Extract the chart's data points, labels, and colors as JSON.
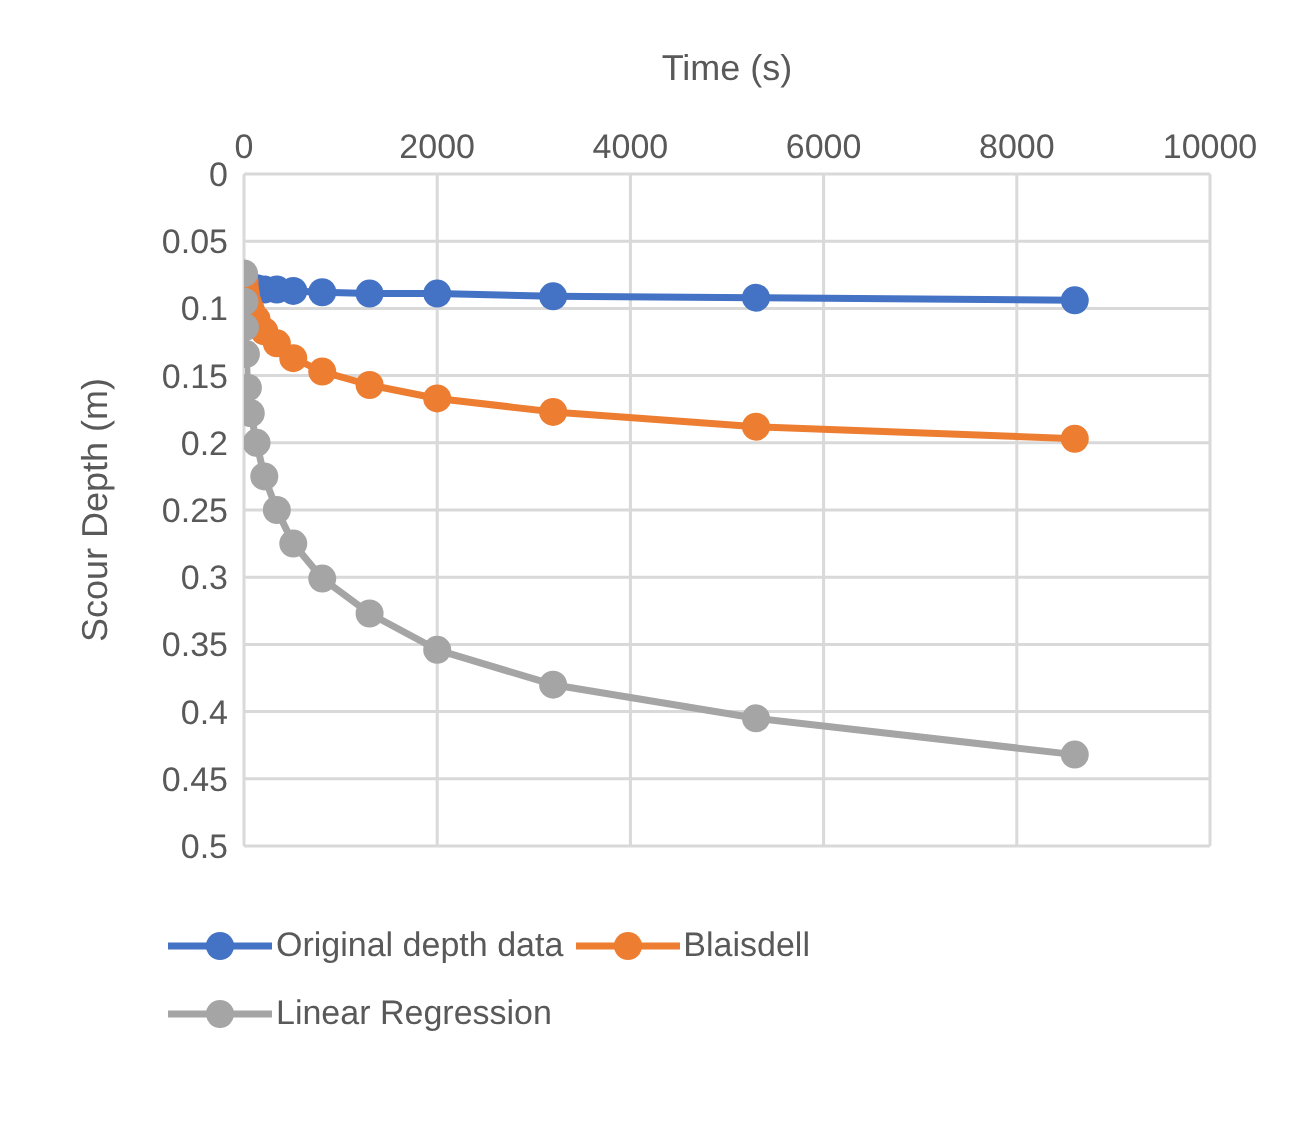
{
  "chart_data": {
    "type": "line",
    "xlabel": "Time (s)",
    "ylabel": "Scour Depth (m)",
    "x": [
      0,
      5,
      10,
      20,
      40,
      70,
      130,
      210,
      340,
      510,
      810,
      1300,
      2000,
      3200,
      5300,
      8600
    ],
    "series": [
      {
        "name": "Original depth data",
        "color": "#4472c4",
        "values": [
          null,
          null,
          null,
          null,
          0.083,
          0.084,
          0.085,
          0.086,
          0.086,
          0.087,
          0.088,
          0.089,
          0.089,
          0.091,
          0.092,
          0.094
        ]
      },
      {
        "name": "Blaisdell",
        "color": "#ed7d31",
        "values": [
          0.075,
          0.08,
          0.085,
          0.09,
          0.096,
          0.101,
          0.108,
          0.117,
          0.126,
          0.137,
          0.147,
          0.157,
          0.167,
          0.177,
          0.188,
          0.197
        ]
      },
      {
        "name": "Linear Regression",
        "color": "#a5a5a5",
        "values": [
          0.074,
          0.095,
          0.114,
          0.134,
          0.159,
          0.178,
          0.2,
          0.225,
          0.25,
          0.275,
          0.301,
          0.327,
          0.354,
          0.38,
          0.405,
          0.432
        ]
      }
    ],
    "xlim": [
      0,
      10000
    ],
    "xticks": [
      0,
      2000,
      4000,
      6000,
      8000,
      10000
    ],
    "ylim": [
      0.5,
      0
    ],
    "yticks": [
      0,
      0.05,
      0.1,
      0.15,
      0.2,
      0.25,
      0.3,
      0.35,
      0.4,
      0.45,
      0.5
    ],
    "grid": true,
    "legend": "bottom",
    "marker": "circle",
    "line_style": "solid"
  }
}
